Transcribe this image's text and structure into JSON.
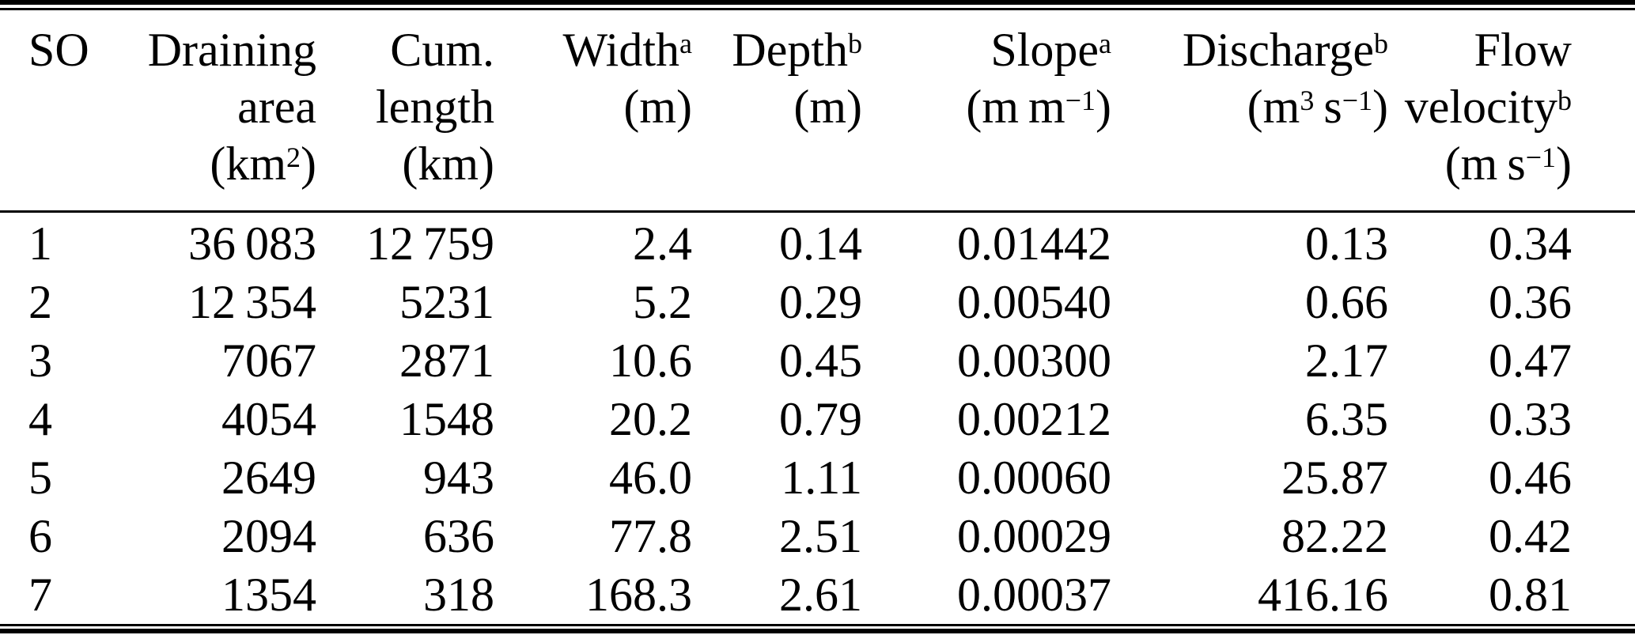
{
  "colors": {
    "background": "#ffffff",
    "text": "#000000",
    "rule": "#000000"
  },
  "table": {
    "columns": [
      {
        "id": "so",
        "align": "left",
        "header_text": "SO",
        "header_lines": [
          [
            {
              "t": "SO"
            }
          ]
        ]
      },
      {
        "id": "draining-area",
        "align": "right",
        "header_text": "Draining area (km2)",
        "header_lines": [
          [
            {
              "t": "Draining"
            }
          ],
          [
            {
              "t": "area"
            }
          ],
          [
            {
              "t": "(km"
            },
            {
              "sup": "2"
            },
            {
              "t": ")"
            }
          ]
        ]
      },
      {
        "id": "cum-length",
        "align": "right",
        "header_text": "Cum. length (km)",
        "header_lines": [
          [
            {
              "t": "Cum."
            }
          ],
          [
            {
              "t": "length"
            }
          ],
          [
            {
              "t": "(km)"
            }
          ]
        ]
      },
      {
        "id": "width",
        "align": "right",
        "header_text": "Width a (m)",
        "header_lines": [
          [
            {
              "t": "Width"
            },
            {
              "sup": "a"
            }
          ],
          [
            {
              "t": "(m)"
            }
          ]
        ]
      },
      {
        "id": "depth",
        "align": "right",
        "header_text": "Depth b (m)",
        "header_lines": [
          [
            {
              "t": "Depth"
            },
            {
              "sup": "b"
            }
          ],
          [
            {
              "t": "(m)"
            }
          ]
        ]
      },
      {
        "id": "slope",
        "align": "right",
        "header_text": "Slope a (m m−1)",
        "header_lines": [
          [
            {
              "t": "Slope"
            },
            {
              "sup": "a"
            }
          ],
          [
            {
              "t": "(m m"
            },
            {
              "sup": "−1"
            },
            {
              "t": ")"
            }
          ]
        ]
      },
      {
        "id": "discharge",
        "align": "right",
        "header_text": "Discharge b (m3 s−1)",
        "header_lines": [
          [
            {
              "t": "Discharge"
            },
            {
              "sup": "b"
            }
          ],
          [
            {
              "t": "(m"
            },
            {
              "sup": "3"
            },
            {
              "t": " s"
            },
            {
              "sup": "−1"
            },
            {
              "t": ")"
            }
          ]
        ]
      },
      {
        "id": "flow-velocity",
        "align": "right",
        "header_text": "Flow velocity b (m s−1)",
        "header_lines": [
          [
            {
              "t": "Flow"
            }
          ],
          [
            {
              "t": "velocity"
            },
            {
              "sup": "b"
            }
          ],
          [
            {
              "t": "(m s"
            },
            {
              "sup": "−1"
            },
            {
              "t": ")"
            }
          ]
        ]
      }
    ],
    "rows": [
      [
        "1",
        "36 083",
        "12 759",
        "2.4",
        "0.14",
        "0.01442",
        "0.13",
        "0.34"
      ],
      [
        "2",
        "12 354",
        "5231",
        "5.2",
        "0.29",
        "0.00540",
        "0.66",
        "0.36"
      ],
      [
        "3",
        "7067",
        "2871",
        "10.6",
        "0.45",
        "0.00300",
        "2.17",
        "0.47"
      ],
      [
        "4",
        "4054",
        "1548",
        "20.2",
        "0.79",
        "0.00212",
        "6.35",
        "0.33"
      ],
      [
        "5",
        "2649",
        "943",
        "46.0",
        "1.11",
        "0.00060",
        "25.87",
        "0.46"
      ],
      [
        "6",
        "2094",
        "636",
        "77.8",
        "2.51",
        "0.00029",
        "82.22",
        "0.42"
      ],
      [
        "7",
        "1354",
        "318",
        "168.3",
        "2.61",
        "0.00037",
        "416.16",
        "0.81"
      ]
    ]
  },
  "chart_data": {
    "type": "table",
    "columns": [
      "SO",
      "Draining area (km2)",
      "Cum. length (km)",
      "Width a (m)",
      "Depth b (m)",
      "Slope a (m m-1)",
      "Discharge b (m3 s-1)",
      "Flow velocity b (m s-1)"
    ],
    "rows": [
      [
        1,
        36083,
        12759,
        2.4,
        0.14,
        0.01442,
        0.13,
        0.34
      ],
      [
        2,
        12354,
        5231,
        5.2,
        0.29,
        0.0054,
        0.66,
        0.36
      ],
      [
        3,
        7067,
        2871,
        10.6,
        0.45,
        0.003,
        2.17,
        0.47
      ],
      [
        4,
        4054,
        1548,
        20.2,
        0.79,
        0.00212,
        6.35,
        0.33
      ],
      [
        5,
        2649,
        943,
        46.0,
        1.11,
        0.0006,
        25.87,
        0.46
      ],
      [
        6,
        2094,
        636,
        77.8,
        2.51,
        0.00029,
        82.22,
        0.42
      ],
      [
        7,
        1354,
        318,
        168.3,
        2.61,
        0.00037,
        416.16,
        0.81
      ]
    ]
  }
}
